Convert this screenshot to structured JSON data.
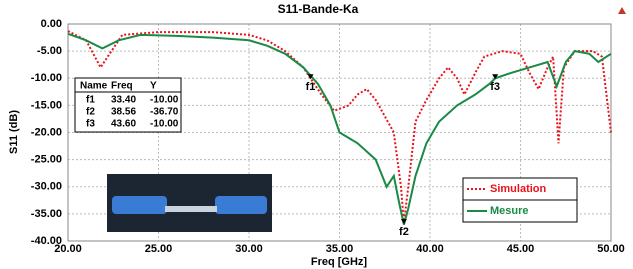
{
  "chart_data": {
    "type": "line",
    "title": "S11-Bande-Ka",
    "xlabel": "Freq [GHz]",
    "ylabel": "S11 (dB)",
    "xlim": [
      20,
      50
    ],
    "ylim": [
      -40,
      0
    ],
    "xticks": [
      {
        "value": 20,
        "label": "20.00"
      },
      {
        "value": 25,
        "label": "25.00"
      },
      {
        "value": 30,
        "label": "30.00"
      },
      {
        "value": 35,
        "label": "35.00"
      },
      {
        "value": 40,
        "label": "40.00"
      },
      {
        "value": 45,
        "label": "45.00"
      },
      {
        "value": 50,
        "label": "50.00"
      }
    ],
    "yticks": [
      {
        "value": 0,
        "label": "0.00"
      },
      {
        "value": -5,
        "label": "-5.00"
      },
      {
        "value": -10,
        "label": "-10.00"
      },
      {
        "value": -15,
        "label": "-15.00"
      },
      {
        "value": -20,
        "label": "-20.00"
      },
      {
        "value": -25,
        "label": "-25.00"
      },
      {
        "value": -30,
        "label": "-30.00"
      },
      {
        "value": -35,
        "label": "-35.00"
      },
      {
        "value": -40,
        "label": "-40.00"
      }
    ],
    "grid": true,
    "series": [
      {
        "name": "Simulation",
        "color": "#e8141b",
        "dash": "dotted",
        "x": [
          20,
          21,
          21.8,
          22.4,
          23,
          25,
          28,
          30,
          31,
          32,
          33,
          33.4,
          34,
          34.7,
          35.5,
          36,
          36.5,
          37,
          37.5,
          38,
          38.4,
          38.56,
          38.8,
          39.2,
          39.8,
          40.5,
          41,
          41.5,
          41.9,
          42.5,
          43,
          44,
          45,
          45.5,
          46,
          46.5,
          46.8,
          47.1,
          47.4,
          48,
          49,
          49.5,
          50
        ],
        "values": [
          -1.3,
          -3,
          -8,
          -5,
          -2,
          -1.5,
          -1.5,
          -2,
          -3,
          -5,
          -8,
          -10,
          -13,
          -16,
          -15,
          -13,
          -12,
          -14,
          -17,
          -20,
          -30,
          -36.7,
          -30,
          -18,
          -14,
          -10,
          -8,
          -10,
          -13,
          -9,
          -6,
          -5,
          -5.5,
          -9,
          -12,
          -8,
          -6,
          -22,
          -8,
          -5,
          -5,
          -6,
          -20
        ]
      },
      {
        "name": "Mesure",
        "color": "#1a8a45",
        "dash": "solid",
        "x": [
          20,
          21,
          21.9,
          22.8,
          24,
          26,
          28,
          30,
          31,
          32,
          33,
          33.8,
          34.5,
          35,
          35.5,
          36,
          37,
          37.6,
          38,
          38.3,
          38.56,
          38.8,
          39.2,
          39.8,
          40.5,
          41.5,
          42.5,
          43.3,
          43.6,
          44.5,
          45.5,
          46.5,
          47,
          47.5,
          48,
          48.8,
          49.3,
          50
        ],
        "values": [
          -1.8,
          -3,
          -4.5,
          -3,
          -2,
          -2.2,
          -2.5,
          -3,
          -4,
          -5.5,
          -8,
          -11,
          -15,
          -20,
          -21,
          -22,
          -25,
          -30,
          -28,
          -33,
          -37,
          -34,
          -28,
          -22,
          -18,
          -15,
          -13,
          -11,
          -10,
          -9,
          -8,
          -7,
          -11.5,
          -7,
          -5,
          -5.5,
          -7,
          -5.5
        ]
      }
    ],
    "marker_table": {
      "columns": [
        "Name",
        "Freq",
        "Y"
      ]
    },
    "markers": [
      {
        "name": "f1",
        "x": 33.4,
        "y": -10,
        "x_label": "33.40",
        "y_label": "-10.00"
      },
      {
        "name": "f2",
        "x": 38.56,
        "y": -36.7,
        "x_label": "38.56",
        "y_label": "-36.70"
      },
      {
        "name": "f3",
        "x": 43.6,
        "y": -10,
        "x_label": "43.60",
        "y_label": "-10.00"
      }
    ]
  }
}
